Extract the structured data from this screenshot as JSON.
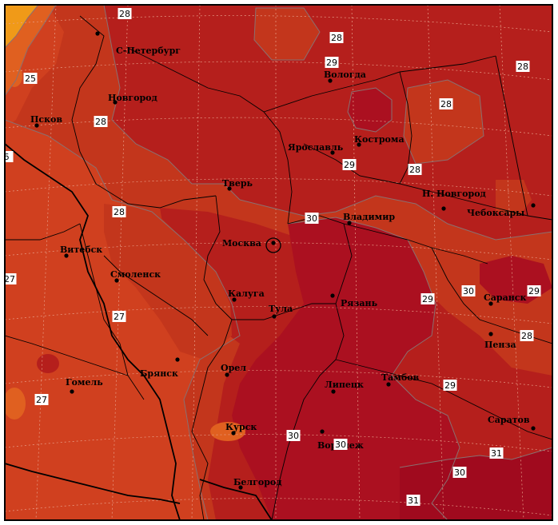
{
  "map": {
    "colors": {
      "t27": "#d0401f",
      "t28": "#c3361c",
      "t29": "#b51f1c",
      "t30": "#ab1020",
      "t31": "#a00a1e",
      "warm_low": "#e06020",
      "warm_lower": "#f09a18",
      "border": "#000000",
      "isoline": "#8a7070",
      "grid": "#e8a08a"
    },
    "cities": [
      {
        "name": "С-Петербург"
      },
      {
        "name": "Новгород"
      },
      {
        "name": "Псков"
      },
      {
        "name": "Вологда"
      },
      {
        "name": "Ярославль"
      },
      {
        "name": "Кострома"
      },
      {
        "name": "Тверь"
      },
      {
        "name": "Н. Новгород"
      },
      {
        "name": "Чебоксары"
      },
      {
        "name": "Владимир"
      },
      {
        "name": "Москва"
      },
      {
        "name": "Витебск"
      },
      {
        "name": "Смоленск"
      },
      {
        "name": "Калуга"
      },
      {
        "name": "Тула"
      },
      {
        "name": "Рязань"
      },
      {
        "name": "Саранск"
      },
      {
        "name": "Пенза"
      },
      {
        "name": "Брянск"
      },
      {
        "name": "Орел"
      },
      {
        "name": "Гомель"
      },
      {
        "name": "Липецк"
      },
      {
        "name": "Тамбов"
      },
      {
        "name": "Курск"
      },
      {
        "name": "Воронеж"
      },
      {
        "name": "Саратов"
      },
      {
        "name": "Белгород"
      }
    ],
    "isolines": [
      {
        "value": "28"
      },
      {
        "value": "28"
      },
      {
        "value": "29"
      },
      {
        "value": "28"
      },
      {
        "value": "25"
      },
      {
        "value": "28"
      },
      {
        "value": "28"
      },
      {
        "value": "29"
      },
      {
        "value": "28"
      },
      {
        "value": "28"
      },
      {
        "value": "30"
      },
      {
        "value": "27"
      },
      {
        "value": "29"
      },
      {
        "value": "30"
      },
      {
        "value": "29"
      },
      {
        "value": "27"
      },
      {
        "value": "28"
      },
      {
        "value": "29"
      },
      {
        "value": "27"
      },
      {
        "value": "30"
      },
      {
        "value": "30"
      },
      {
        "value": "31"
      },
      {
        "value": "30"
      },
      {
        "value": "31"
      },
      {
        "value": "6"
      }
    ]
  }
}
